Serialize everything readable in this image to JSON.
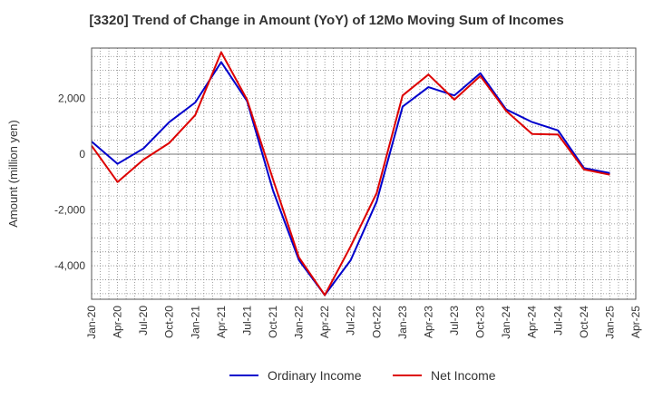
{
  "chart_data": {
    "type": "line",
    "title": "[3320]  Trend of Change in Amount (YoY) of 12Mo Moving Sum of Incomes",
    "xlabel": "",
    "ylabel": "Amount (million yen)",
    "ylim": [
      -5200,
      3800
    ],
    "yticks": [
      2000,
      0,
      -2000,
      -4000
    ],
    "ytick_labels": [
      "2,000",
      "0",
      "-2,000",
      "-4,000"
    ],
    "x": [
      "Jan-20",
      "Apr-20",
      "Jul-20",
      "Oct-20",
      "Jan-21",
      "Apr-21",
      "Jul-21",
      "Oct-21",
      "Jan-22",
      "Apr-22",
      "Jul-22",
      "Oct-22",
      "Jan-23",
      "Apr-23",
      "Jul-23",
      "Oct-23",
      "Jan-24",
      "Apr-24",
      "Jul-24",
      "Oct-24",
      "Jan-25"
    ],
    "xtick_labels": [
      "Jan-20",
      "Apr-20",
      "Jul-20",
      "Oct-20",
      "Jan-21",
      "Apr-21",
      "Jul-21",
      "Oct-21",
      "Jan-22",
      "Apr-22",
      "Jul-22",
      "Oct-22",
      "Jan-23",
      "Apr-23",
      "Jul-23",
      "Oct-23",
      "Jan-24",
      "Apr-24",
      "Jul-24",
      "Oct-24",
      "Jan-25",
      "Apr-25"
    ],
    "grid": true,
    "legend_position": "bottom",
    "series": [
      {
        "name": "Ordinary Income",
        "color": "#0000cc",
        "values": [
          450,
          -350,
          200,
          1150,
          1850,
          3300,
          1900,
          -1300,
          -3800,
          -5050,
          -3800,
          -1700,
          1700,
          2400,
          2100,
          2900,
          1600,
          1150,
          850,
          -500,
          -680
        ]
      },
      {
        "name": "Net Income",
        "color": "#dd0000",
        "values": [
          300,
          -1000,
          -200,
          400,
          1400,
          3650,
          1950,
          -900,
          -3700,
          -5050,
          -3300,
          -1400,
          2100,
          2850,
          1950,
          2800,
          1550,
          720,
          700,
          -550,
          -740
        ]
      }
    ]
  }
}
